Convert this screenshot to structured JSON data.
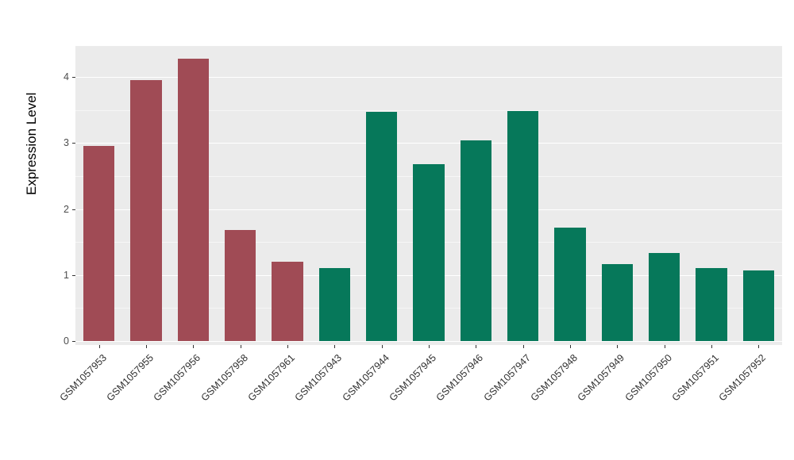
{
  "chart_data": {
    "type": "bar",
    "title": "",
    "xlabel": "",
    "ylabel": "Expression Level",
    "ylim": [
      -0.06,
      4.47
    ],
    "yticks": [
      0,
      1,
      2,
      3,
      4
    ],
    "grid": "on",
    "legend": null,
    "categories": [
      "GSM1057953",
      "GSM1057955",
      "GSM1057956",
      "GSM1057958",
      "GSM1057961",
      "GSM1057943",
      "GSM1057944",
      "GSM1057945",
      "GSM1057946",
      "GSM1057947",
      "GSM1057948",
      "GSM1057949",
      "GSM1057950",
      "GSM1057951",
      "GSM1057952"
    ],
    "values": [
      2.95,
      3.95,
      4.28,
      1.68,
      1.2,
      1.11,
      3.47,
      2.68,
      3.04,
      3.49,
      1.72,
      1.16,
      1.33,
      1.1,
      1.07
    ],
    "bar_colors": [
      "#A04B55",
      "#A04B55",
      "#A04B55",
      "#A04B55",
      "#A04B55",
      "#06785A",
      "#06785A",
      "#06785A",
      "#06785A",
      "#06785A",
      "#06785A",
      "#06785A",
      "#06785A",
      "#06785A",
      "#06785A"
    ],
    "colors": {
      "group_red": "#A04B55",
      "group_green": "#06785A",
      "panel_background": "#EBEBEB",
      "gridline": "#FFFFFF"
    }
  }
}
